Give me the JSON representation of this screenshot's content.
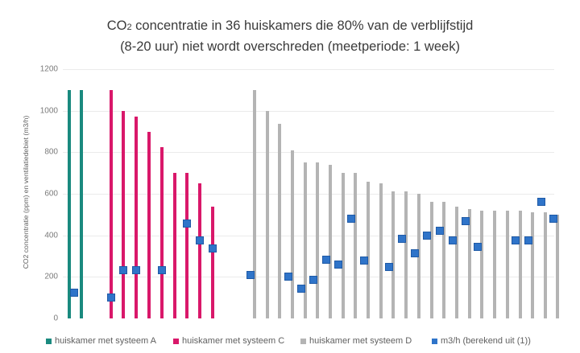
{
  "chart_data": {
    "type": "bar",
    "title_line1_pre": "CO",
    "title_sub": "2",
    "title_line1_post": " concentratie in 36 huiskamers die 80% van de verblijfstijd",
    "title_line2": "(8-20 uur) niet wordt overschreden (meetperiode: 1 week)",
    "title": "CO2 concentratie in 36 huiskamers die 80% van de verblijfstijd (8-20 uur) niet wordt overschreden (meetperiode: 1 week)",
    "xlabel": "",
    "ylabel": "CO2 concentratie (ppm) en ventilatiedebiet (m3/h)",
    "ylim": [
      0,
      1200
    ],
    "yticks": [
      0,
      200,
      400,
      600,
      800,
      1000,
      1200
    ],
    "ytick_labels": [
      "0",
      "200",
      "400",
      "600",
      "800",
      "1000",
      "1200"
    ],
    "grid": true,
    "legend_position": "bottom",
    "categories_count": 36,
    "series": [
      {
        "name": "huiskamer met systeem A",
        "kind": "bar",
        "color": "#1a8a7f",
        "x": [
          86,
          101
        ],
        "values": [
          1100,
          1100
        ]
      },
      {
        "name": "huiskamer met systeem C",
        "kind": "bar",
        "color": "#d9186a",
        "x": [
          138,
          153,
          169,
          185,
          201,
          217,
          232,
          248,
          264
        ],
        "values": [
          1100,
          1000,
          970,
          900,
          825,
          700,
          700,
          650,
          540
        ]
      },
      {
        "name": "huiskamer met systeem D",
        "kind": "bar",
        "color": "#b4b4b4",
        "x": [
          316,
          332,
          347,
          363,
          379,
          394,
          410,
          426,
          441,
          457,
          473,
          488,
          504,
          520,
          536,
          551,
          567,
          583,
          598,
          614,
          630,
          646,
          661,
          677,
          692
        ],
        "values": [
          1100,
          1000,
          935,
          810,
          750,
          750,
          740,
          700,
          700,
          660,
          650,
          610,
          610,
          600,
          560,
          560,
          540,
          525,
          520,
          520,
          520,
          520,
          510,
          510,
          500
        ]
      },
      {
        "name": "m3/h (berekend uit (1))",
        "kind": "scatter",
        "color": "#2f74c9",
        "points": [
          {
            "x": 92,
            "value": 125
          },
          {
            "x": 138,
            "value": 100
          },
          {
            "x": 153,
            "value": 232
          },
          {
            "x": 169,
            "value": 232
          },
          {
            "x": 201,
            "value": 232
          },
          {
            "x": 232,
            "value": 457
          },
          {
            "x": 248,
            "value": 375
          },
          {
            "x": 264,
            "value": 337
          },
          {
            "x": 311,
            "value": 209
          },
          {
            "x": 358,
            "value": 200
          },
          {
            "x": 374,
            "value": 142
          },
          {
            "x": 389,
            "value": 186
          },
          {
            "x": 405,
            "value": 283
          },
          {
            "x": 420,
            "value": 259
          },
          {
            "x": 436,
            "value": 480
          },
          {
            "x": 452,
            "value": 279
          },
          {
            "x": 483,
            "value": 248
          },
          {
            "x": 499,
            "value": 383
          },
          {
            "x": 515,
            "value": 313
          },
          {
            "x": 530,
            "value": 399
          },
          {
            "x": 546,
            "value": 422
          },
          {
            "x": 562,
            "value": 375
          },
          {
            "x": 578,
            "value": 468
          },
          {
            "x": 593,
            "value": 344
          },
          {
            "x": 640,
            "value": 375
          },
          {
            "x": 656,
            "value": 375
          },
          {
            "x": 672,
            "value": 561
          },
          {
            "x": 687,
            "value": 480
          }
        ]
      }
    ]
  },
  "legend": [
    {
      "label": "huiskamer met systeem A",
      "color": "#1a8a7f",
      "x": 57
    },
    {
      "label": "huiskamer met systeem C",
      "color": "#d9186a",
      "x": 215
    },
    {
      "label": "huiskamer met systeem D",
      "color": "#b4b4b4",
      "x": 373
    },
    {
      "label": "m3/h (berekend uit (1))",
      "color": "#2f74c9",
      "x": 536
    }
  ]
}
